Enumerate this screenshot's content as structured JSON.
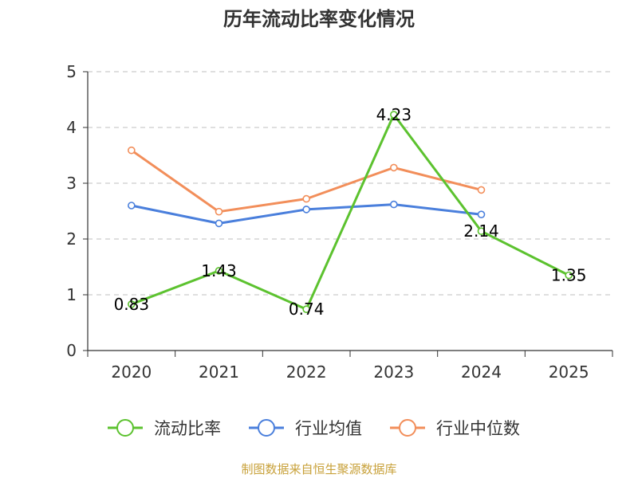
{
  "chart_data": {
    "type": "line",
    "title": "历年流动比率变化情况",
    "categories": [
      "2020",
      "2021",
      "2022",
      "2023",
      "2024",
      "2025"
    ],
    "ylim": [
      0,
      5
    ],
    "yticks": [
      0,
      1,
      2,
      3,
      4,
      5
    ],
    "grid": true,
    "legend_position": "bottom",
    "series": [
      {
        "name": "流动比率",
        "color": "#5cc22f",
        "values": [
          0.83,
          1.43,
          0.74,
          4.23,
          2.14,
          1.35
        ],
        "labels": [
          "0.83",
          "1.43",
          "0.74",
          "4.23",
          "2.14",
          "1.35"
        ]
      },
      {
        "name": "行业均值",
        "color": "#4a7fdc",
        "values": [
          2.6,
          2.28,
          2.53,
          2.62,
          2.44,
          null
        ]
      },
      {
        "name": "行业中位数",
        "color": "#f28e5a",
        "values": [
          3.59,
          2.49,
          2.72,
          3.28,
          2.88,
          null
        ]
      }
    ]
  },
  "source": "制图数据来自恒生聚源数据库"
}
